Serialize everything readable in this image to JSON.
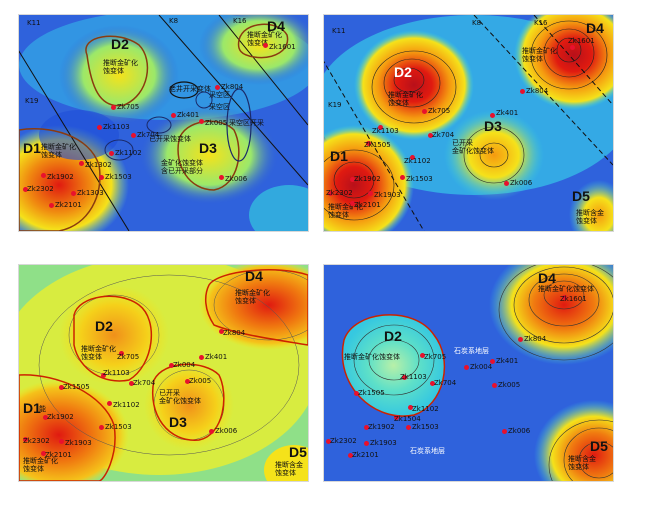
{
  "colors": {
    "high": "#e01a10",
    "mid": "#f5e21a",
    "cyan": "#36d8e0",
    "low": "#1f4fd8",
    "boundary": "#cc2200"
  },
  "panel1": {
    "zones": {
      "d1": "D1",
      "d2": "D2",
      "d3": "D3",
      "d4": "D4"
    },
    "labels": {
      "d2_text": "推断金矿化\n蚀变体",
      "d3_text": "金矿化蚀变体\n含已开采部分",
      "d1_text": "推断金矿化\n蚀变体",
      "d4_text": "推断金矿化\n蚀变体",
      "mined1": "老井开采变体",
      "mined2": "采空区",
      "mined3": "采空区",
      "mined4": "已开采蚀变体",
      "mined5": "采空区开采",
      "k11": "K11",
      "k8": "K8",
      "k16": "K16",
      "k19": "K19"
    },
    "wells": [
      "Zk1601",
      "Zk804",
      "Zk705",
      "Zk401",
      "Zk1103",
      "Zk704",
      "Zk1102",
      "Zk006",
      "Zk1302",
      "Zk1902",
      "Zk1503",
      "Zk2302",
      "Zk2101",
      "Zk1303",
      "Zk005"
    ]
  },
  "panel2": {
    "zones": {
      "d1": "D1",
      "d2": "D2",
      "d3": "D3",
      "d4": "D4",
      "d5": "D5"
    },
    "labels": {
      "d2_text": "推断金矿化\n蚀变体",
      "d3_text": "已开采\n金矿化蚀变体",
      "d1_text": "推断金矿化\n蚀变体",
      "d4_text": "推断金矿化\n蚀变体",
      "d5_text": "推断含金\n蚀变体",
      "k11": "K11",
      "k8": "K8",
      "k16": "K16",
      "k19": "K19"
    },
    "wells": [
      "Zk1601",
      "Zk804",
      "Zk705",
      "Zk401",
      "Zk1103",
      "Zk704",
      "Zk1102",
      "Zk1505",
      "Zk1503",
      "Zk1902",
      "Zk2302",
      "Zk006",
      "Zk1903",
      "Zk2101"
    ]
  },
  "panel3": {
    "zones": {
      "d1": "D1",
      "d2": "D2",
      "d3": "D3",
      "d4": "D4",
      "d5": "D5"
    },
    "labels": {
      "d2_text": "推断金矿化\n蚀变体",
      "d3_text": "已开采\n金矿化蚀变体",
      "d1_text": "推断金矿化\n蚀变体",
      "d4_text": "推断金矿化\n蚀变体",
      "d5_text": "推断含金\n蚀变体",
      "d1_tag": "能"
    },
    "wells": [
      "Zk804",
      "Zk705",
      "Zk401",
      "Zk1103",
      "Zk704",
      "Zk004",
      "Zk005",
      "Zk1102",
      "Zk1505",
      "Zk1503",
      "Zk1902",
      "Zk2302",
      "Zk006",
      "Zk1903",
      "Zk2101"
    ]
  },
  "panel4": {
    "zones": {
      "d2": "D2",
      "d4": "D4",
      "d5": "D5"
    },
    "labels": {
      "d2_text": "推断金矿化蚀变体",
      "d4_text": "推断金矿化蚀变体",
      "d5_text": "推断含金\n蚀变体",
      "strata1": "石炭系地层",
      "strata2": "石炭系地层"
    },
    "wells": [
      "Zk1601",
      "Zk804",
      "Zk705",
      "Zk401",
      "Zk004",
      "Zk005",
      "Zk1103",
      "Zk704",
      "Zk1505",
      "Zk1504",
      "Zk1102",
      "Zk1902",
      "Zk1503",
      "Zk2302",
      "Zk1903",
      "Zk2101",
      "Zk006"
    ]
  }
}
